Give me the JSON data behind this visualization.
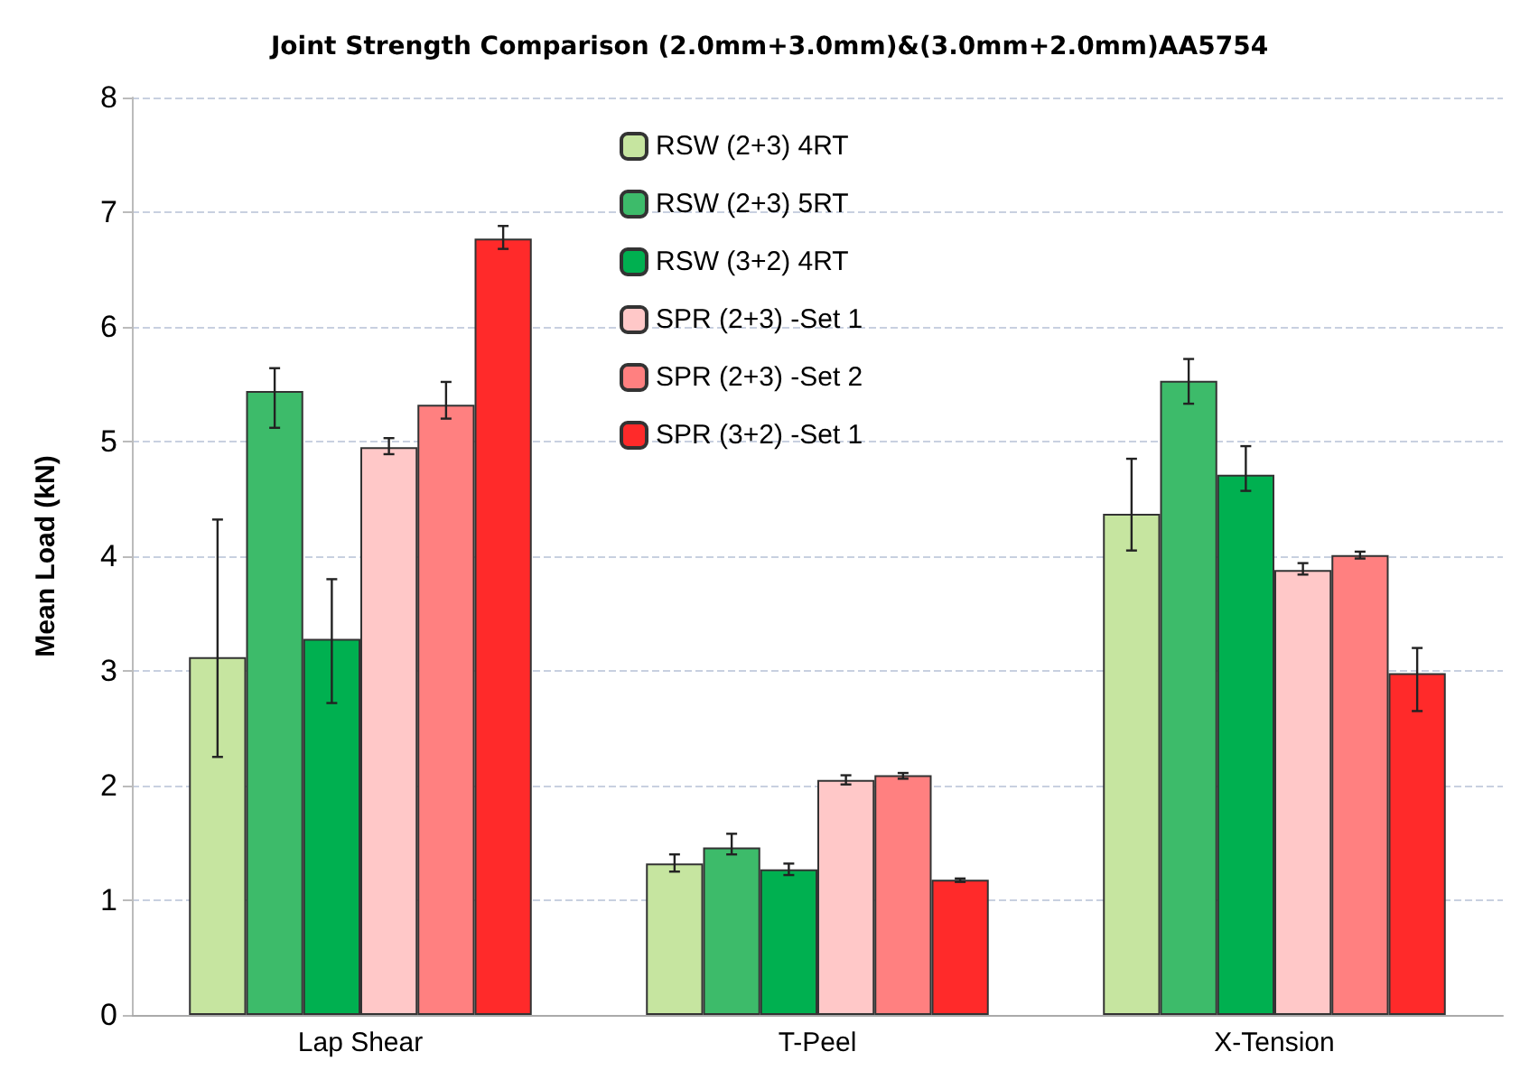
{
  "chart_data": {
    "type": "bar",
    "title": "Joint Strength Comparison (2.0mm+3.0mm)&(3.0mm+2.0mm)AA5754",
    "ylabel": "Mean Load (kN)",
    "categories": [
      "Lap Shear",
      "T-Peel",
      "X-Tension"
    ],
    "series": [
      {
        "name": "RSW (2+3) 4RT",
        "color": "#c6e5a0",
        "values": [
          3.12,
          1.32,
          4.37
        ],
        "errors": [
          [
            2.25,
            4.32
          ],
          [
            1.25,
            1.4
          ],
          [
            4.05,
            4.85
          ]
        ]
      },
      {
        "name": "RSW (2+3) 5RT",
        "color": "#3dbb6a",
        "values": [
          5.44,
          1.46,
          5.53
        ],
        "errors": [
          [
            5.12,
            5.64
          ],
          [
            1.4,
            1.58
          ],
          [
            5.33,
            5.72
          ]
        ]
      },
      {
        "name": "RSW (3+2) 4RT",
        "color": "#00b050",
        "values": [
          3.28,
          1.27,
          4.71
        ],
        "errors": [
          [
            2.72,
            3.8
          ],
          [
            1.22,
            1.32
          ],
          [
            4.57,
            4.96
          ]
        ]
      },
      {
        "name": "SPR (2+3) -Set 1",
        "color": "#ffc8c8",
        "values": [
          4.95,
          2.05,
          3.88
        ],
        "errors": [
          [
            4.89,
            5.03
          ],
          [
            2.01,
            2.09
          ],
          [
            3.84,
            3.94
          ]
        ]
      },
      {
        "name": "SPR (2+3) -Set 2",
        "color": "#ff8080",
        "values": [
          5.32,
          2.09,
          4.01
        ],
        "errors": [
          [
            5.2,
            5.52
          ],
          [
            2.06,
            2.11
          ],
          [
            3.98,
            4.04
          ]
        ]
      },
      {
        "name": "SPR (3+2) -Set 1",
        "color": "#ff2a2a",
        "values": [
          6.77,
          1.18,
          2.98
        ],
        "errors": [
          [
            6.68,
            6.88
          ],
          [
            1.16,
            1.19
          ],
          [
            2.65,
            3.2
          ]
        ]
      }
    ],
    "ylim": [
      0,
      8
    ],
    "yticks": [
      0,
      1,
      2,
      3,
      4,
      5,
      6,
      7,
      8
    ],
    "grid": "y",
    "legend": "top"
  }
}
